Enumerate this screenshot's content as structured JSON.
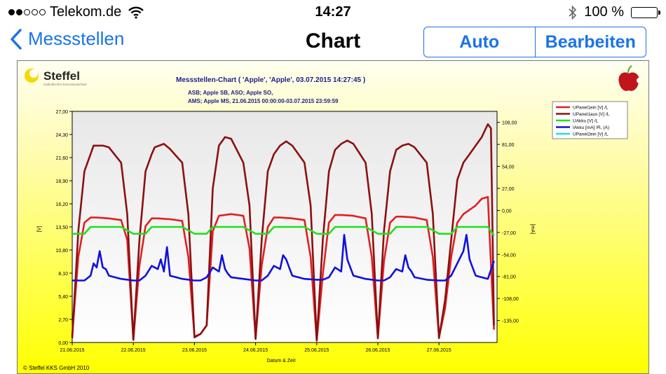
{
  "status": {
    "carrier": "Telekom.de",
    "time": "14:27",
    "battery": "100 %",
    "signal_dots_filled": 2,
    "signal_dots_total": 5
  },
  "nav": {
    "back_label": "Messstellen",
    "title": "Chart",
    "segments": [
      "Auto",
      "Bearbeiten"
    ]
  },
  "chart_meta": {
    "logo_text": "Steffel",
    "logo_subtext": "Kathodischer Korrosionsschutz",
    "copyright": "© Steffel KKS GmbH 2010",
    "header_lines": [
      "Messstellen-Chart ( 'Apple',  'Apple',  03.07.2015 14:27:45 )",
      "ASB; Apple SB, ASO; Apple SO,",
      "AMS; Apple MS, 21.06.2015 00:00:00-03.07.2015 23:59:59"
    ]
  },
  "chart_data": {
    "type": "line",
    "title": "Messstellen-Chart ( 'Apple',  'Apple',  03.07.2015 14:27:45 )",
    "xlabel": "Datum & Zeit",
    "ylabel": "[V]",
    "y2label": "[mA]",
    "x_ticks": [
      "21.06.2015",
      "22.06.2015",
      "23.06.2015",
      "24.06.2015",
      "25.06.2015",
      "26.06.2015",
      "27.06.2015"
    ],
    "xlim": [
      0,
      6.95
    ],
    "ylim": [
      0,
      27
    ],
    "y_ticks": [
      "0,00",
      "2,70",
      "5,40",
      "8,10",
      "10,80",
      "13,50",
      "16,20",
      "18,90",
      "21,60",
      "24,30",
      "27,00"
    ],
    "y2lim": [
      -162,
      121.5
    ],
    "y2_ticks": [
      "-135,00",
      "-108,00",
      "-81,00",
      "-54,00",
      "-27,00",
      "0,00",
      "27,00",
      "54,00",
      "81,00",
      "108,00"
    ],
    "grid": false,
    "legend_position": "top-right",
    "series": [
      {
        "name": "UPanel1ein [V] /L",
        "axis": "left",
        "color": "#e02020",
        "x": [
          0,
          0.1,
          0.2,
          0.3,
          0.4,
          0.6,
          0.8,
          0.9,
          1.0,
          1.1,
          1.2,
          1.3,
          1.4,
          1.6,
          1.8,
          1.9,
          2.0,
          2.1,
          2.2,
          2.3,
          2.4,
          2.6,
          2.8,
          2.9,
          3.0,
          3.1,
          3.2,
          3.3,
          3.4,
          3.6,
          3.8,
          3.9,
          4.0,
          4.1,
          4.2,
          4.3,
          4.4,
          4.6,
          4.8,
          4.9,
          5.0,
          5.1,
          5.2,
          5.3,
          5.4,
          5.6,
          5.8,
          5.9,
          6.0,
          6.1,
          6.2,
          6.3,
          6.4,
          6.5,
          6.6,
          6.7,
          6.8,
          6.9
        ],
        "y": [
          0.8,
          10,
          14,
          14.6,
          14.6,
          14.5,
          14.3,
          12,
          0.3,
          9,
          13.6,
          14.5,
          14.5,
          14.4,
          14.2,
          10,
          0.7,
          1,
          2,
          13,
          14.8,
          15,
          14.8,
          11,
          0.5,
          9,
          13.5,
          14.6,
          14.6,
          14.5,
          14.3,
          10,
          0.2,
          8,
          14,
          14.9,
          14.9,
          14.8,
          14.5,
          10,
          0.5,
          9.5,
          14,
          14.7,
          14.7,
          14.6,
          14.3,
          10,
          0.6,
          4,
          10,
          14,
          15,
          15.5,
          16,
          16.8,
          17,
          1.5
        ]
      },
      {
        "name": "UPanel1aus [V] /L",
        "axis": "left",
        "color": "#8b1010",
        "x": [
          0,
          0.1,
          0.2,
          0.3,
          0.35,
          0.5,
          0.6,
          0.8,
          0.9,
          1.0,
          1.1,
          1.2,
          1.3,
          1.35,
          1.5,
          1.6,
          1.8,
          1.9,
          2.0,
          2.1,
          2.2,
          2.3,
          2.4,
          2.5,
          2.6,
          2.8,
          2.9,
          3.0,
          3.1,
          3.2,
          3.3,
          3.4,
          3.5,
          3.6,
          3.8,
          3.9,
          4.0,
          4.1,
          4.2,
          4.3,
          4.4,
          4.5,
          4.6,
          4.8,
          4.9,
          5.0,
          5.1,
          5.2,
          5.3,
          5.4,
          5.5,
          5.6,
          5.8,
          5.9,
          6.0,
          6.1,
          6.2,
          6.3,
          6.4,
          6.5,
          6.6,
          6.7,
          6.8,
          6.85,
          6.9
        ],
        "y": [
          0.5,
          13,
          20,
          22,
          23,
          23,
          22.8,
          21,
          15,
          0.3,
          12,
          20,
          22,
          22.8,
          23.2,
          22.6,
          21,
          15,
          0.6,
          1,
          2,
          18,
          23,
          24,
          23.8,
          21,
          16,
          0.4,
          12,
          20,
          22,
          23,
          23.5,
          23,
          21,
          16,
          0.3,
          12,
          20,
          22.5,
          23.2,
          23.6,
          23.2,
          21,
          15,
          0.5,
          13,
          20,
          22.5,
          23,
          23.2,
          22.8,
          21,
          15,
          0.5,
          5,
          12,
          19,
          21,
          22,
          23,
          24,
          25.5,
          25,
          2
        ]
      },
      {
        "name": "UAkku [V] /L",
        "axis": "left",
        "color": "#20e020",
        "x": [
          0,
          0.2,
          0.3,
          0.5,
          0.8,
          1.0,
          1.2,
          1.3,
          1.5,
          1.8,
          2.0,
          2.2,
          2.3,
          2.5,
          2.8,
          3.0,
          3.2,
          3.3,
          3.5,
          3.8,
          4.0,
          4.2,
          4.3,
          4.5,
          4.8,
          5.0,
          5.2,
          5.3,
          5.5,
          5.8,
          6.0,
          6.2,
          6.3,
          6.5,
          6.8,
          6.9
        ],
        "y": [
          12.7,
          12.7,
          13.5,
          13.5,
          13.5,
          12.7,
          12.7,
          13.5,
          13.5,
          13.5,
          12.7,
          12.7,
          13.5,
          13.5,
          13.5,
          12.7,
          12.7,
          13.5,
          13.5,
          13.5,
          12.7,
          12.7,
          13.5,
          13.5,
          13.5,
          12.7,
          12.7,
          13.5,
          13.5,
          13.5,
          12.7,
          12.7,
          13.5,
          13.5,
          13.5,
          12.5
        ]
      },
      {
        "name": "IAkku [mA] /R, (A)",
        "axis": "right",
        "color": "#1010e0",
        "x": [
          0,
          0.2,
          0.3,
          0.35,
          0.4,
          0.45,
          0.5,
          0.55,
          0.6,
          0.8,
          1.0,
          1.1,
          1.2,
          1.3,
          1.4,
          1.45,
          1.5,
          1.55,
          1.6,
          1.8,
          2.0,
          2.1,
          2.2,
          2.3,
          2.4,
          2.45,
          2.5,
          2.55,
          2.6,
          2.8,
          3.0,
          3.1,
          3.2,
          3.3,
          3.4,
          3.45,
          3.5,
          3.55,
          3.6,
          3.8,
          4.0,
          4.1,
          4.2,
          4.3,
          4.4,
          4.45,
          4.5,
          4.55,
          4.6,
          4.8,
          5.0,
          5.1,
          5.2,
          5.3,
          5.4,
          5.45,
          5.5,
          5.55,
          5.6,
          5.8,
          6.0,
          6.1,
          6.2,
          6.3,
          6.4,
          6.45,
          6.5,
          6.55,
          6.6,
          6.8,
          6.9
        ],
        "y": [
          -86,
          -86,
          -80,
          -65,
          -70,
          -50,
          -70,
          -72,
          -80,
          -84,
          -86,
          -86,
          -80,
          -68,
          -72,
          -60,
          -75,
          -45,
          -80,
          -84,
          -86,
          -86,
          -82,
          -70,
          -75,
          -55,
          -72,
          -78,
          -82,
          -84,
          -86,
          -86,
          -80,
          -68,
          -72,
          -55,
          -60,
          -70,
          -80,
          -84,
          -85,
          -85,
          -82,
          -70,
          -75,
          -30,
          -60,
          -70,
          -80,
          -84,
          -86,
          -86,
          -82,
          -72,
          -75,
          -55,
          -70,
          -75,
          -82,
          -85,
          -86,
          -86,
          -80,
          -65,
          -50,
          -30,
          -60,
          -70,
          -80,
          -84,
          -62
        ]
      },
      {
        "name": "UPanel2ein [V] /L",
        "axis": "left",
        "color": "#20e0e0",
        "x": [],
        "y": []
      }
    ]
  }
}
